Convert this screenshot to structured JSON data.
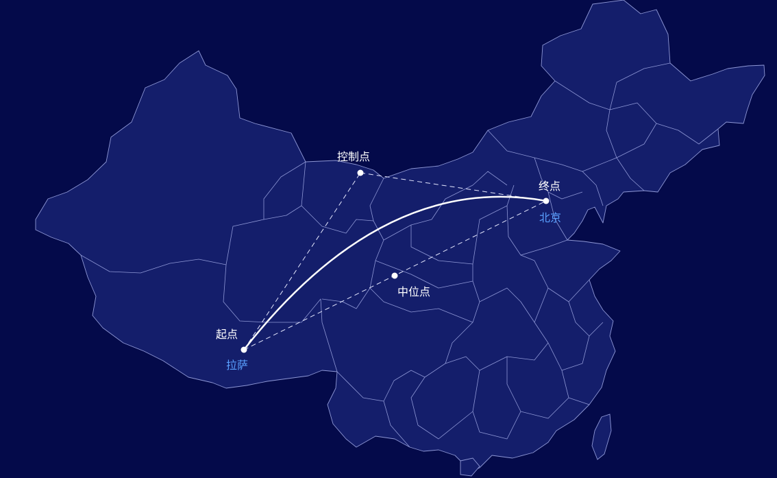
{
  "colors": {
    "background": "#040a4a",
    "land": "#141e6b",
    "border": "#8f98d6",
    "route": "#ffffff",
    "guide": "#e6e9ff",
    "label": "#ffffff",
    "city": "#5aa0ff"
  },
  "points": {
    "start": {
      "label": "起点",
      "city": "拉萨"
    },
    "end": {
      "label": "终点",
      "city": "北京"
    },
    "control": {
      "label": "控制点"
    },
    "mid": {
      "label": "中位点"
    }
  }
}
